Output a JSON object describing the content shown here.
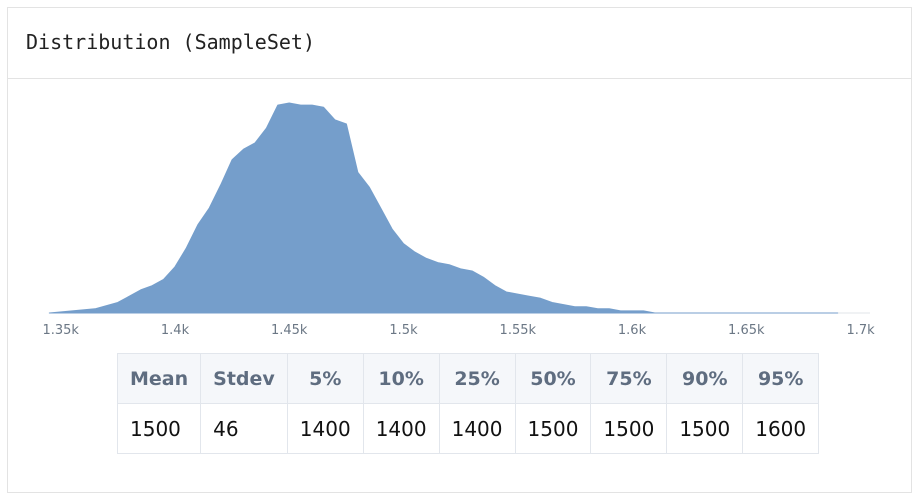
{
  "title": "Distribution (SampleSet)",
  "colors": {
    "fill": "#759ecb",
    "axis": "#6b7785"
  },
  "chart_data": {
    "type": "area",
    "title": "Distribution (SampleSet)",
    "xlim": [
      1330,
      1705
    ],
    "ylim": [
      0,
      1
    ],
    "xticks": [
      {
        "value": 1350,
        "label": "1.35k"
      },
      {
        "value": 1400,
        "label": "1.4k"
      },
      {
        "value": 1450,
        "label": "1.45k"
      },
      {
        "value": 1500,
        "label": "1.5k"
      },
      {
        "value": 1550,
        "label": "1.55k"
      },
      {
        "value": 1600,
        "label": "1.6k"
      },
      {
        "value": 1650,
        "label": "1.65k"
      },
      {
        "value": 1700,
        "label": "1.7k"
      }
    ],
    "x": [
      1345,
      1355,
      1365,
      1375,
      1380,
      1385,
      1390,
      1395,
      1400,
      1405,
      1410,
      1415,
      1420,
      1425,
      1430,
      1435,
      1440,
      1445,
      1450,
      1455,
      1460,
      1465,
      1470,
      1475,
      1480,
      1485,
      1490,
      1495,
      1500,
      1505,
      1510,
      1515,
      1520,
      1525,
      1530,
      1535,
      1540,
      1545,
      1550,
      1555,
      1560,
      1565,
      1570,
      1575,
      1580,
      1585,
      1590,
      1595,
      1600,
      1605,
      1610,
      1615,
      1620,
      1625,
      1630,
      1635,
      1640,
      1645,
      1650,
      1660,
      1670,
      1680,
      1690
    ],
    "density": [
      0.0,
      0.01,
      0.02,
      0.05,
      0.08,
      0.11,
      0.13,
      0.16,
      0.22,
      0.31,
      0.42,
      0.5,
      0.61,
      0.73,
      0.78,
      0.81,
      0.88,
      0.99,
      1.0,
      0.99,
      0.99,
      0.98,
      0.92,
      0.9,
      0.67,
      0.6,
      0.5,
      0.4,
      0.33,
      0.29,
      0.26,
      0.24,
      0.23,
      0.21,
      0.2,
      0.17,
      0.13,
      0.1,
      0.09,
      0.08,
      0.07,
      0.05,
      0.04,
      0.03,
      0.03,
      0.02,
      0.02,
      0.01,
      0.01,
      0.01,
      0.0,
      0.0,
      0.0,
      0.0,
      0.0,
      0.0,
      0.0,
      0.0,
      0.0,
      0.0,
      0.0,
      0.0,
      0.0
    ]
  },
  "stats": {
    "headers": [
      "Mean",
      "Stdev",
      "5%",
      "10%",
      "25%",
      "50%",
      "75%",
      "90%",
      "95%"
    ],
    "values": [
      "1500",
      "46",
      "1400",
      "1400",
      "1400",
      "1500",
      "1500",
      "1500",
      "1600"
    ]
  }
}
